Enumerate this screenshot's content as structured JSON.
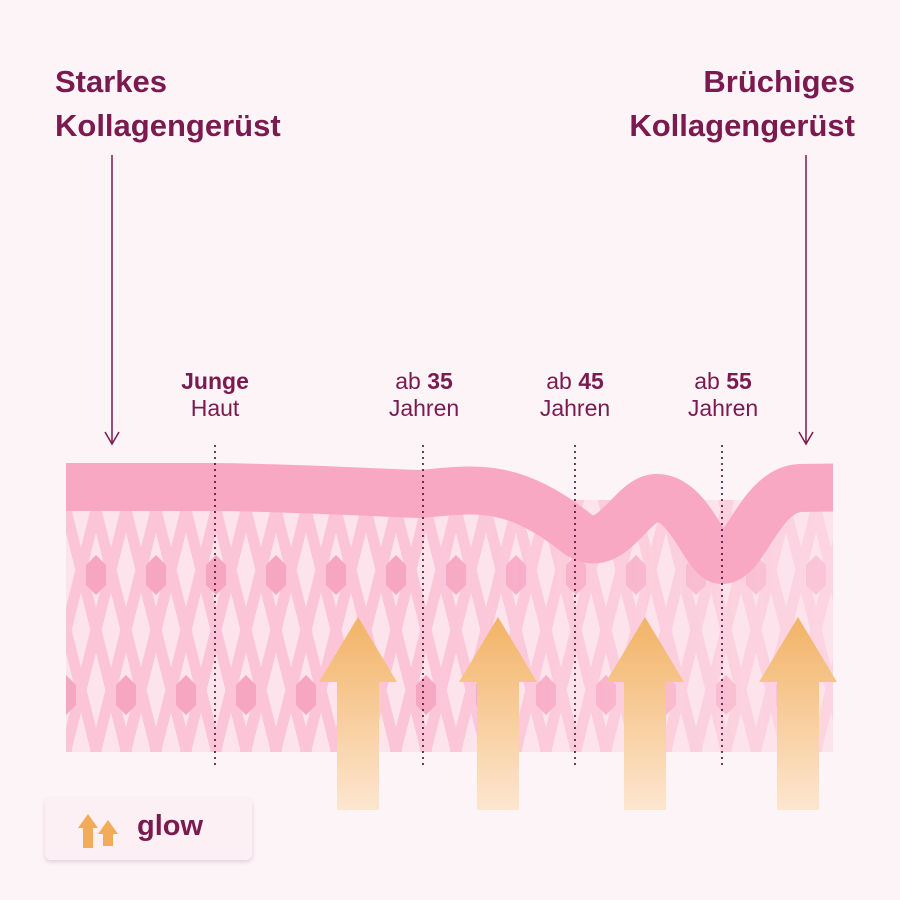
{
  "titles": {
    "left": [
      "Starkes",
      "Kollagengerüst"
    ],
    "right": [
      "Brüchiges",
      "Kollagengerüst"
    ]
  },
  "stages": [
    {
      "bold": "Junge",
      "normal": "Haut"
    },
    {
      "prefix": "ab ",
      "bold": "35",
      "line2": "Jahren"
    },
    {
      "prefix": "ab ",
      "bold": "45",
      "line2": "Jahren"
    },
    {
      "prefix": "ab ",
      "bold": "55",
      "line2": "Jahren"
    }
  ],
  "legend": {
    "label": "glow",
    "icon": "double-up-arrow-icon"
  },
  "colors": {
    "text": "#7a1a4e",
    "band": "#f9a8c4",
    "lattice_bg": "#fde3ec",
    "lattice_line": "#fbc5d7",
    "hexagon": "#f7a6c2",
    "arrow_top": "#f2b366",
    "arrow_bottom": "#fde6cf"
  }
}
